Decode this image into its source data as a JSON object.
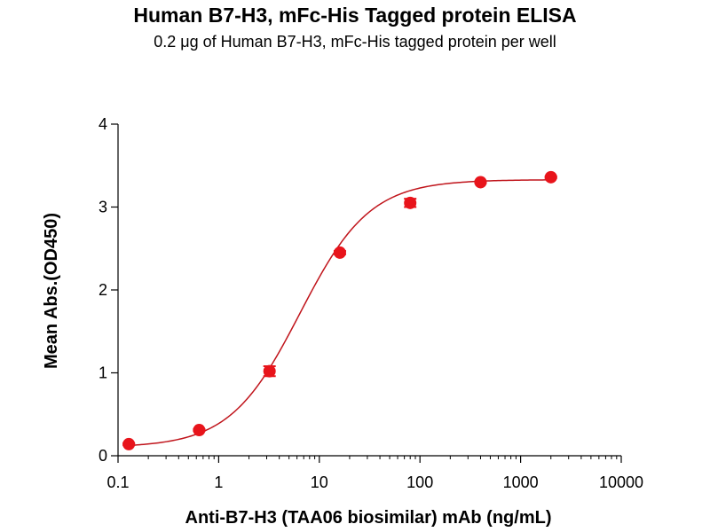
{
  "chart_data": {
    "type": "scatter",
    "title": "Human B7-H3, mFc-His Tagged protein ELISA",
    "subtitle": "0.2 μg of Human B7-H3, mFc-His tagged protein per well",
    "xlabel": "Anti-B7-H3 (TAA06 biosimilar) mAb (ng/mL)",
    "ylabel": "Mean Abs.(OD450)",
    "x_scale": "log",
    "xlim": [
      0.1,
      10000
    ],
    "ylim": [
      0,
      4
    ],
    "x_ticks": [
      "0.1",
      "1",
      "10",
      "100",
      "1000",
      "10000"
    ],
    "y_ticks": [
      "0",
      "1",
      "2",
      "3",
      "4"
    ],
    "grid": false,
    "color": "#e8141b",
    "curve_color": "#c0141b",
    "fit": {
      "model": "4PL",
      "bottom": 0.1,
      "top": 3.33,
      "ec50": 6.4,
      "hill": 1.25
    },
    "points": [
      {
        "x": 0.128,
        "y": 0.14,
        "err": 0.01
      },
      {
        "x": 0.64,
        "y": 0.31,
        "err": 0.01
      },
      {
        "x": 3.2,
        "y": 1.02,
        "err": 0.06
      },
      {
        "x": 16,
        "y": 2.45,
        "err": 0.02
      },
      {
        "x": 80,
        "y": 3.05,
        "err": 0.05
      },
      {
        "x": 400,
        "y": 3.3,
        "err": 0.01
      },
      {
        "x": 2000,
        "y": 3.36,
        "err": 0.01
      }
    ]
  }
}
